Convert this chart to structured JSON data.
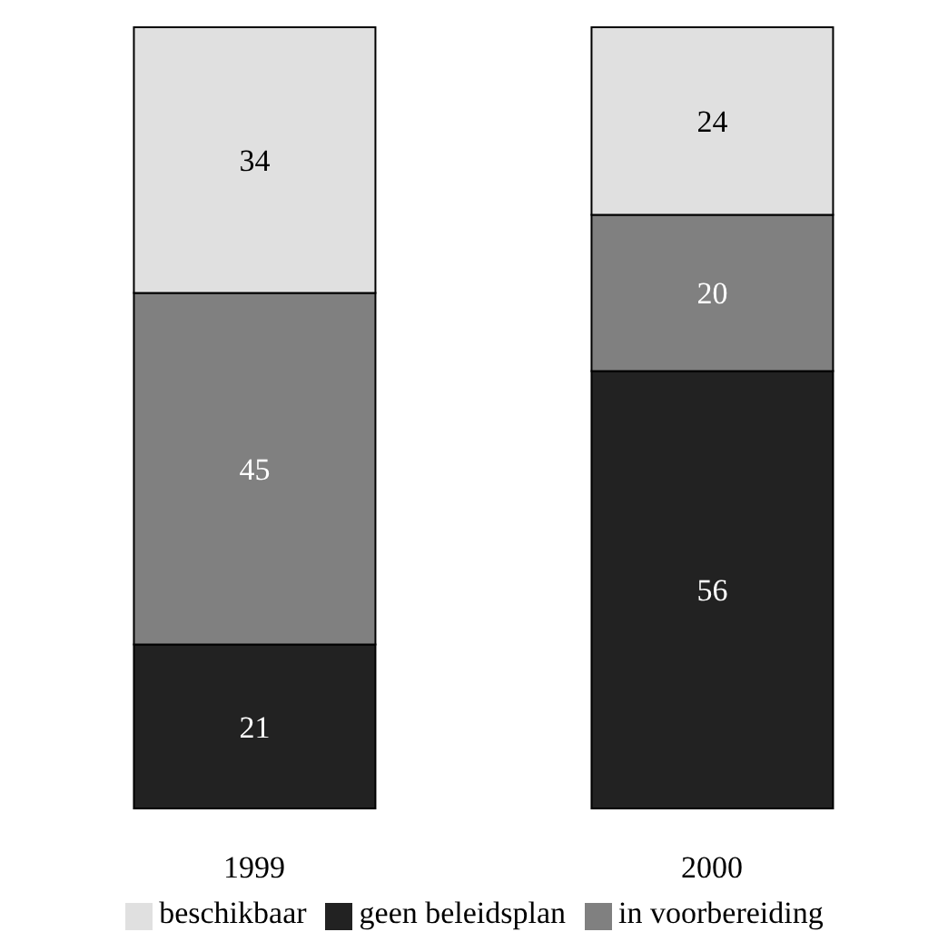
{
  "chart_data": {
    "type": "bar",
    "stacked": true,
    "categories": [
      "1999",
      "2000"
    ],
    "series": [
      {
        "name": "geen beleidsplan",
        "color": "#222222",
        "values": [
          21,
          56
        ]
      },
      {
        "name": "in voorbereiding",
        "color": "#808080",
        "values": [
          45,
          20
        ]
      },
      {
        "name": "beschikbaar",
        "color": "#e0e0e0",
        "values": [
          34,
          24
        ]
      }
    ],
    "data_labels": true,
    "legend": "bottom",
    "grid": false
  }
}
